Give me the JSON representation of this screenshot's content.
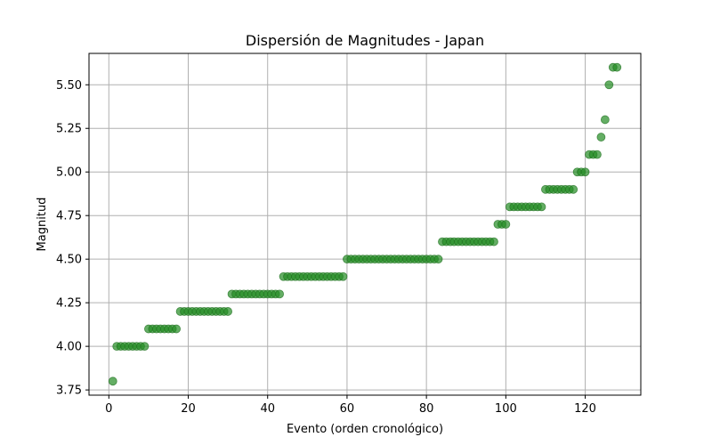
{
  "chart_data": {
    "type": "scatter",
    "title": "Dispersión de Magnitudes - Japan",
    "xlabel": "Evento (orden cronológico)",
    "ylabel": "Magnitud",
    "xlim": [
      -5,
      134
    ],
    "ylim": [
      3.72,
      5.68
    ],
    "xticks": [
      0,
      20,
      40,
      60,
      80,
      100,
      120
    ],
    "yticks": [
      3.75,
      4.0,
      4.25,
      4.5,
      4.75,
      5.0,
      5.25,
      5.5
    ],
    "ytick_labels": [
      "3.75",
      "4.00",
      "4.25",
      "4.50",
      "4.75",
      "5.00",
      "5.25",
      "5.50"
    ],
    "grid": true,
    "marker_color": "#228b22",
    "marker_edge_color": "#1e6e1e",
    "marker_alpha": 0.7,
    "runs": [
      {
        "from": 1,
        "to": 1,
        "y": 3.8
      },
      {
        "from": 2,
        "to": 9,
        "y": 4.0
      },
      {
        "from": 10,
        "to": 17,
        "y": 4.1
      },
      {
        "from": 18,
        "to": 30,
        "y": 4.2
      },
      {
        "from": 31,
        "to": 43,
        "y": 4.3
      },
      {
        "from": 44,
        "to": 59,
        "y": 4.4
      },
      {
        "from": 60,
        "to": 83,
        "y": 4.5
      },
      {
        "from": 84,
        "to": 97,
        "y": 4.6
      },
      {
        "from": 98,
        "to": 100,
        "y": 4.7
      },
      {
        "from": 101,
        "to": 109,
        "y": 4.8
      },
      {
        "from": 110,
        "to": 117,
        "y": 4.9
      },
      {
        "from": 118,
        "to": 120,
        "y": 5.0
      },
      {
        "from": 121,
        "to": 123,
        "y": 5.1
      },
      {
        "from": 124,
        "to": 124,
        "y": 5.2
      },
      {
        "from": 125,
        "to": 125,
        "y": 5.3
      },
      {
        "from": 126,
        "to": 126,
        "y": 5.5
      },
      {
        "from": 127,
        "to": 128,
        "y": 5.6
      }
    ]
  }
}
